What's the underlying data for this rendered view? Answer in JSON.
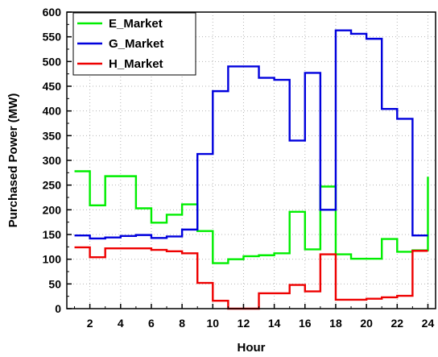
{
  "chart_data": {
    "type": "line",
    "xlabel": "Hour",
    "ylabel": "Purchased Power (MW)",
    "xlim": [
      0.5,
      24.5
    ],
    "ylim": [
      0,
      600
    ],
    "xticks": [
      2,
      4,
      6,
      8,
      10,
      12,
      14,
      16,
      18,
      20,
      22,
      24
    ],
    "yticks": [
      0,
      50,
      100,
      150,
      200,
      250,
      300,
      350,
      400,
      450,
      500,
      550,
      600
    ],
    "x": [
      1,
      2,
      3,
      4,
      5,
      6,
      7,
      8,
      9,
      10,
      11,
      12,
      13,
      14,
      15,
      16,
      17,
      18,
      19,
      20,
      21,
      22,
      23,
      24
    ],
    "step": "post",
    "grid": "dotted",
    "legend": "top-left",
    "series": [
      {
        "name": "E_Market",
        "color": "#00ee00",
        "values": [
          278,
          209,
          268,
          268,
          203,
          174,
          190,
          211,
          157,
          92,
          100,
          106,
          108,
          112,
          196,
          120,
          247,
          110,
          101,
          101,
          141,
          115,
          118,
          267
        ]
      },
      {
        "name": "G_Market",
        "color": "#0000dd",
        "values": [
          148,
          142,
          144,
          147,
          149,
          143,
          146,
          160,
          313,
          440,
          490,
          490,
          467,
          463,
          340,
          477,
          200,
          563,
          556,
          546,
          404,
          384,
          148,
          148
        ]
      },
      {
        "name": "H_Market",
        "color": "#ee0000",
        "values": [
          124,
          104,
          122,
          122,
          122,
          119,
          116,
          112,
          52,
          16,
          0,
          0,
          31,
          31,
          48,
          35,
          110,
          18,
          18,
          20,
          23,
          26,
          117,
          117
        ]
      }
    ]
  }
}
